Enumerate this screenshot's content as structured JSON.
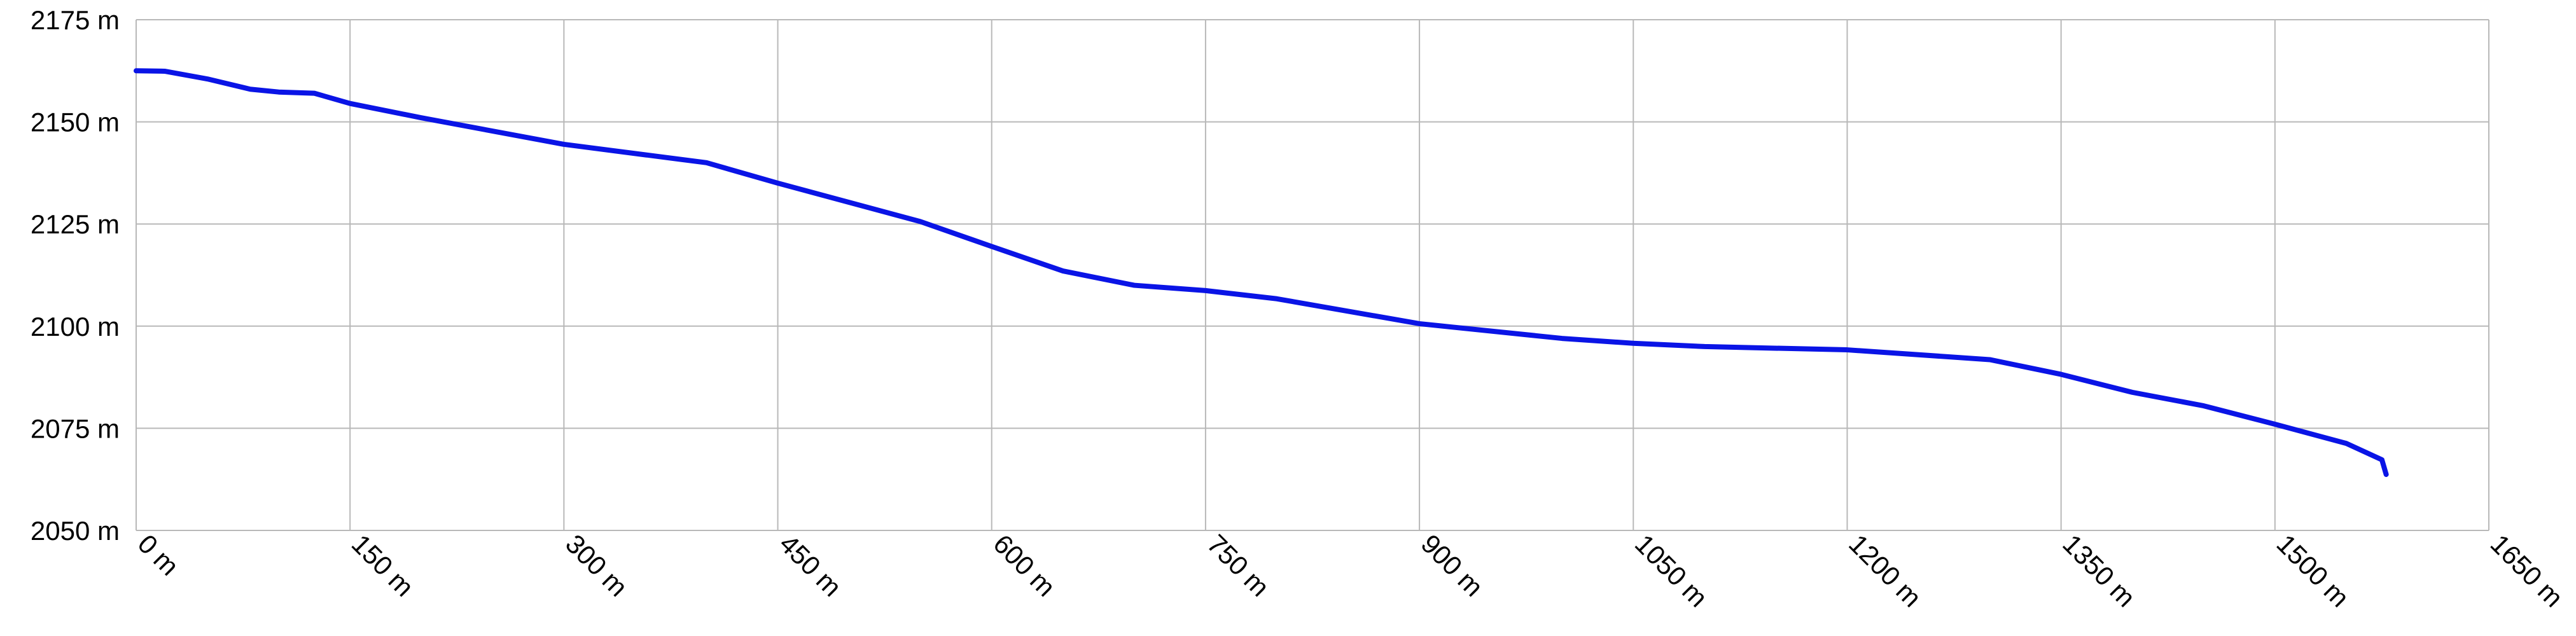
{
  "chart_data": {
    "type": "line",
    "x": [
      0,
      20,
      50,
      80,
      100,
      125,
      150,
      200,
      300,
      400,
      450,
      550,
      600,
      650,
      700,
      750,
      800,
      900,
      1000,
      1050,
      1100,
      1200,
      1300,
      1350,
      1400,
      1450,
      1500,
      1550,
      1575,
      1578
    ],
    "series": [
      {
        "color": "#0a14e6",
        "values": [
          2162.5,
          2162.4,
          2160.5,
          2158,
          2157.3,
          2157,
          2154.5,
          2151,
          2144.5,
          2140,
          2135,
          2125.6,
          2119.5,
          2113.5,
          2110,
          2108.7,
          2106.7,
          2100.6,
          2097,
          2095.8,
          2095,
          2094.2,
          2091.8,
          2088.2,
          2083.8,
          2080.5,
          2076,
          2071.3,
          2067.3,
          2063.7
        ]
      }
    ],
    "xlim": [
      0,
      1650
    ],
    "xticks": [
      {
        "value": 0,
        "label": "0 m"
      },
      {
        "value": 150,
        "label": "150 m"
      },
      {
        "value": 300,
        "label": "300 m"
      },
      {
        "value": 450,
        "label": "450 m"
      },
      {
        "value": 600,
        "label": "600 m"
      },
      {
        "value": 750,
        "label": "750 m"
      },
      {
        "value": 900,
        "label": "900 m"
      },
      {
        "value": 1050,
        "label": "1050 m"
      },
      {
        "value": 1200,
        "label": "1200 m"
      },
      {
        "value": 1350,
        "label": "1350 m"
      },
      {
        "value": 1500,
        "label": "1500 m"
      },
      {
        "value": 1650,
        "label": "1650 m"
      }
    ],
    "ylim": [
      2050,
      2175
    ],
    "yticks": [
      {
        "value": 2050,
        "label": "2050 m"
      },
      {
        "value": 2075,
        "label": "2075 m"
      },
      {
        "value": 2100,
        "label": "2100 m"
      },
      {
        "value": 2125,
        "label": "2125 m"
      },
      {
        "value": 2150,
        "label": "2150 m"
      },
      {
        "value": 2175,
        "label": "2175 m"
      }
    ],
    "grid": true
  }
}
